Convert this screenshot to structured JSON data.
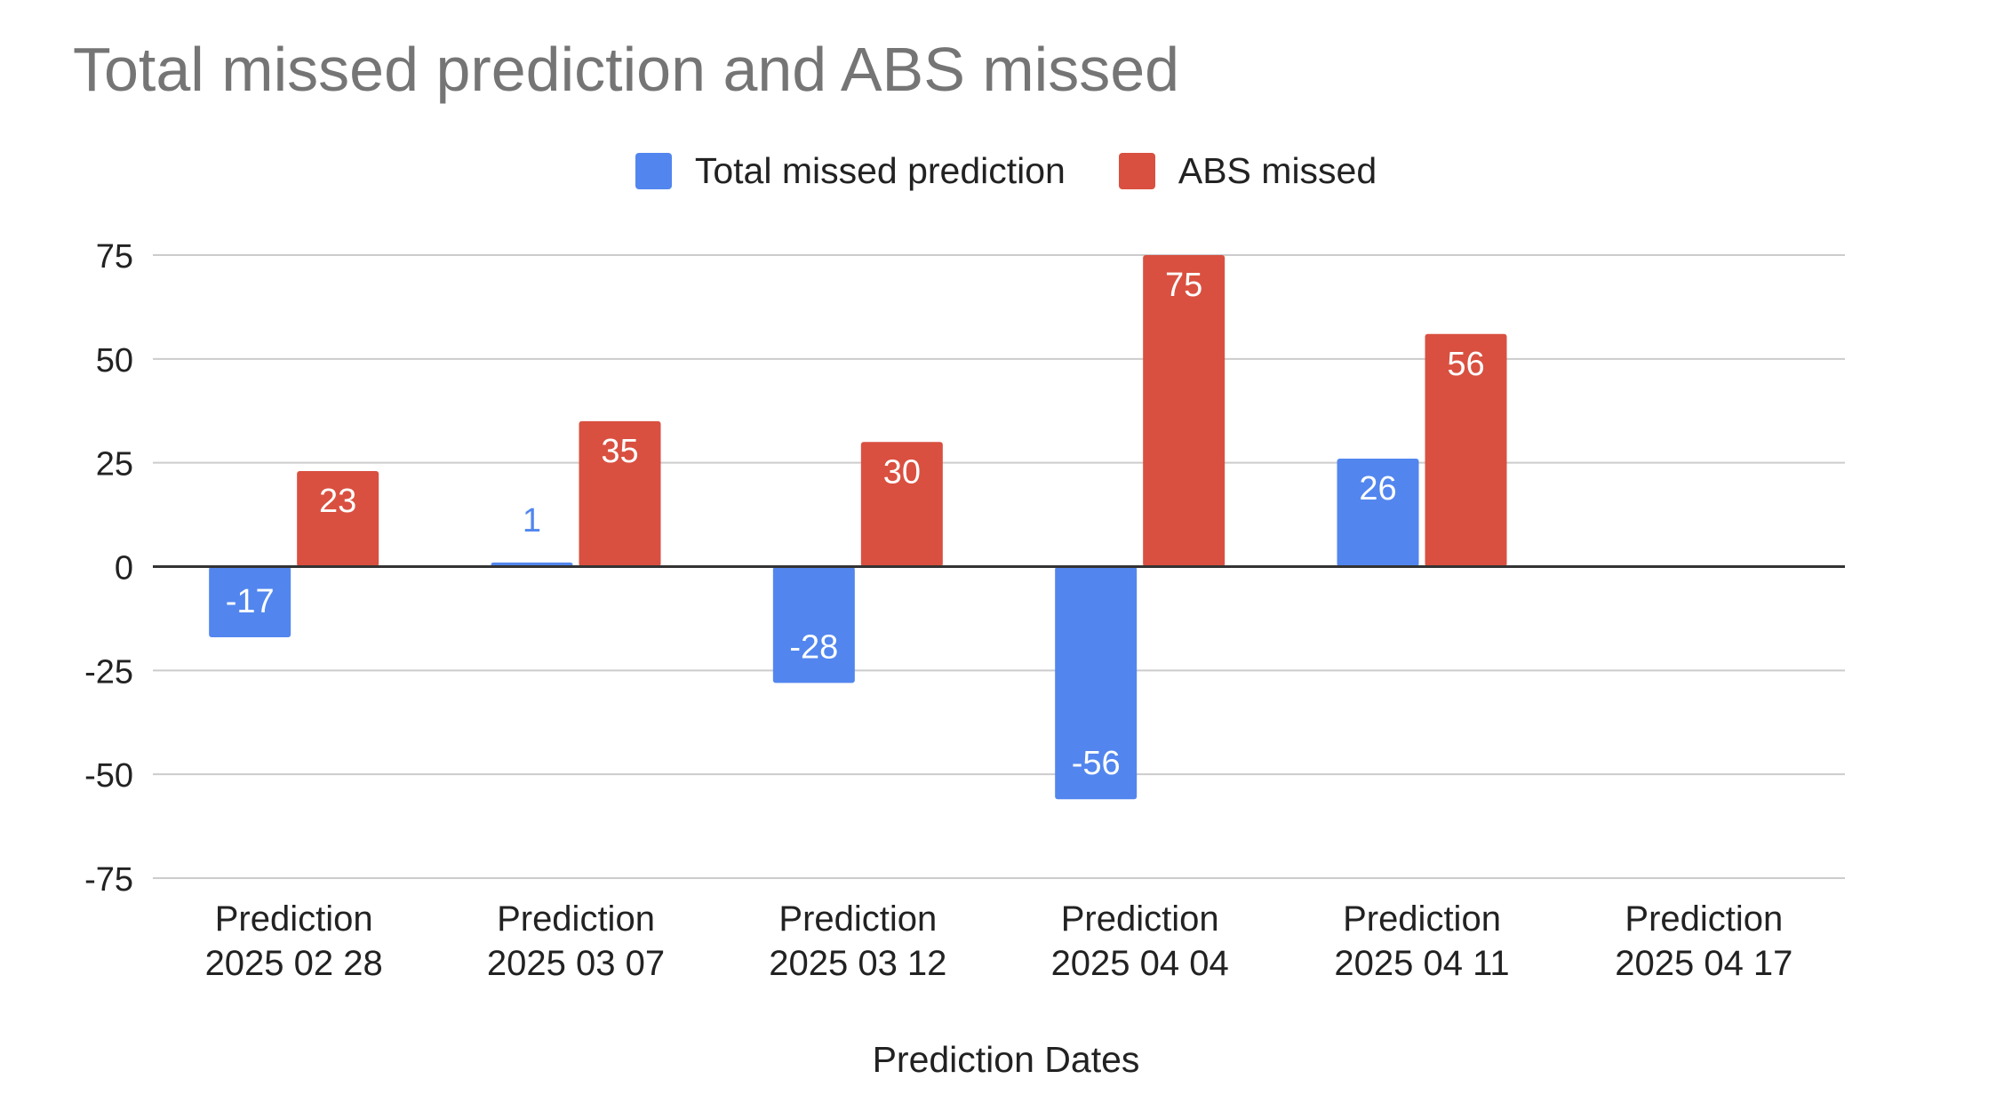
{
  "chart_data": {
    "type": "bar",
    "title": "Total missed prediction and ABS missed",
    "xlabel": "Prediction Dates",
    "ylabel": "",
    "ylim": [
      -75,
      75
    ],
    "yticks": [
      75,
      50,
      25,
      0,
      -25,
      -50,
      -75
    ],
    "grid": true,
    "legend_position": "top",
    "categories": [
      [
        "Prediction",
        "2025 02 28"
      ],
      [
        "Prediction",
        "2025 03 07"
      ],
      [
        "Prediction",
        "2025 03 12"
      ],
      [
        "Prediction",
        "2025 04 04"
      ],
      [
        "Prediction",
        "2025 04 11"
      ],
      [
        "Prediction",
        "2025 04 17"
      ]
    ],
    "series": [
      {
        "name": "Total missed prediction",
        "color": "#5286ee",
        "values": [
          -17,
          1,
          -28,
          -56,
          26,
          null
        ]
      },
      {
        "name": "ABS missed",
        "color": "#d95040",
        "values": [
          23,
          35,
          30,
          75,
          56,
          null
        ]
      }
    ]
  }
}
